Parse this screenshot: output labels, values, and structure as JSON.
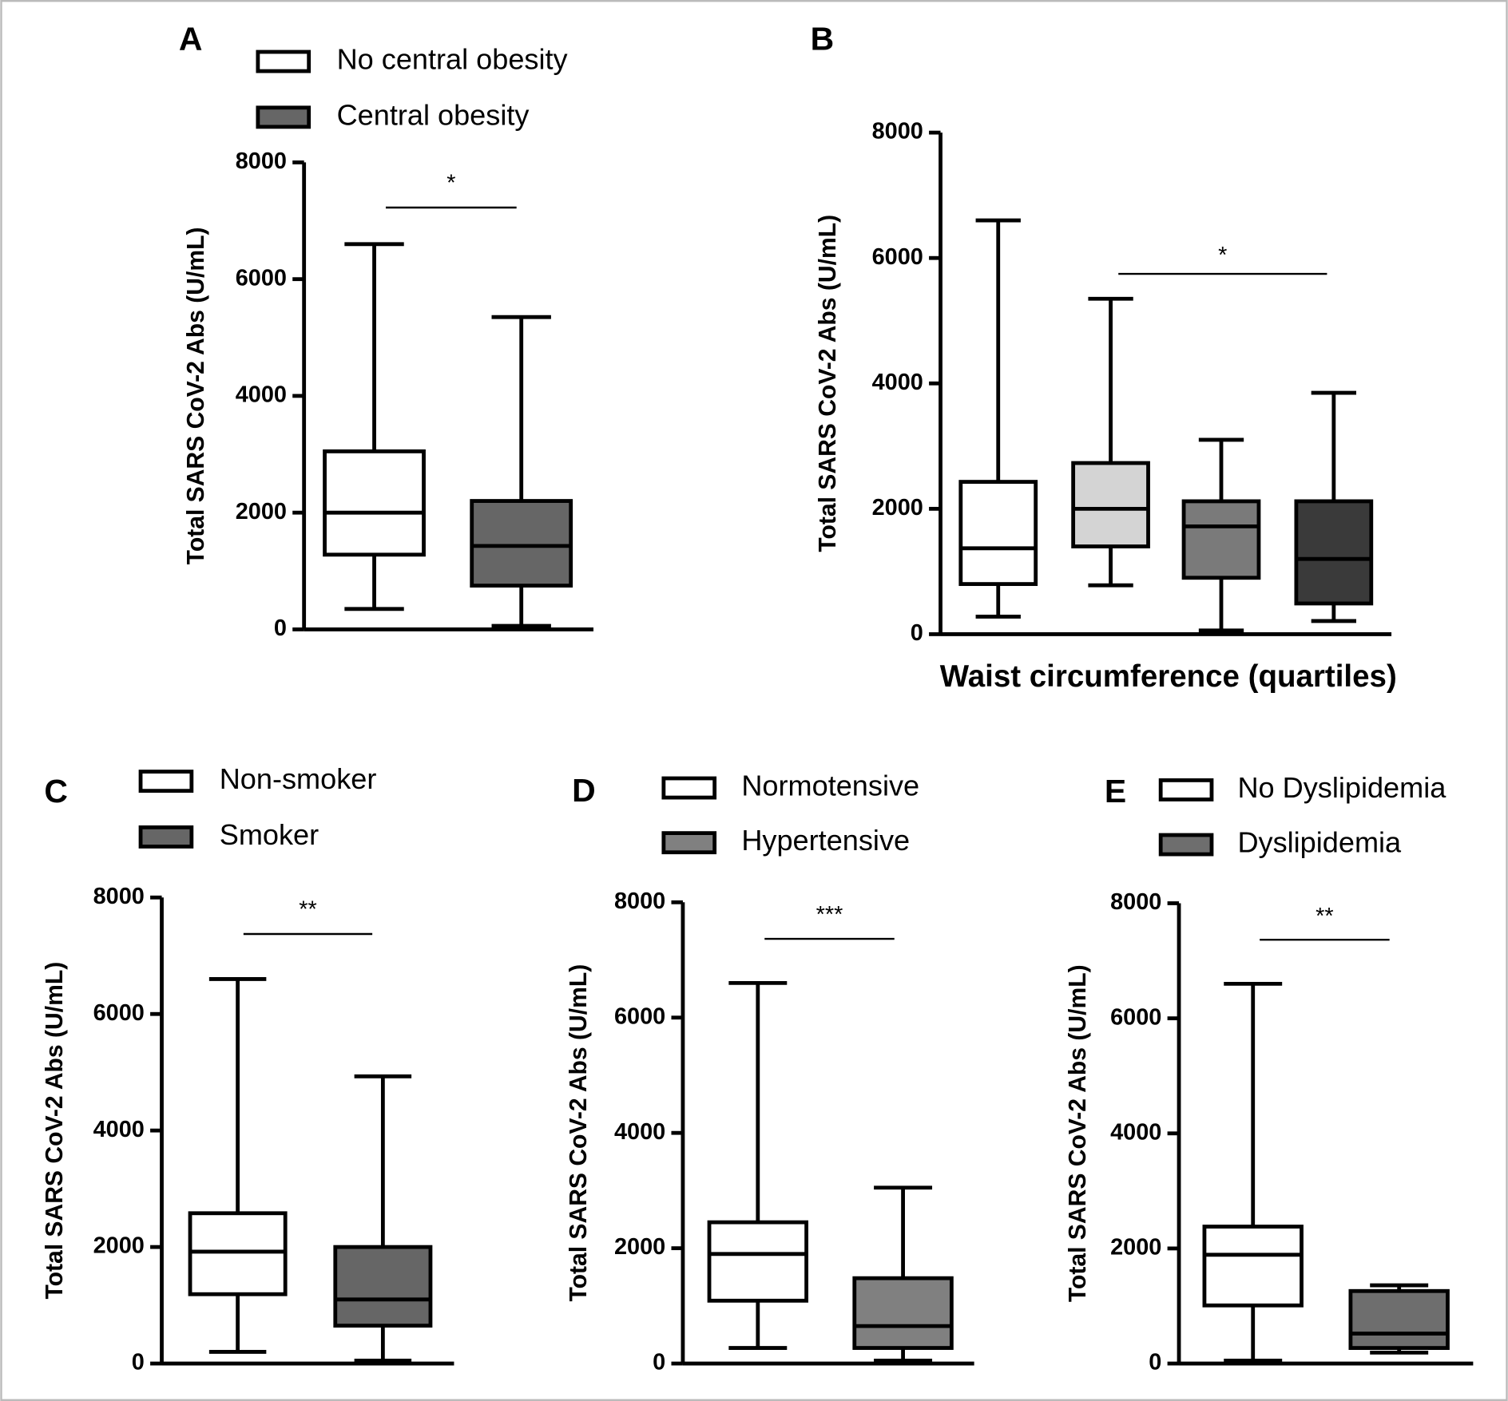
{
  "chart_data": [
    {
      "type": "box",
      "label": "A",
      "y_label": "Total SARS CoV-2 Abs (U/mL)",
      "ylim": [
        0,
        8000
      ],
      "yticks": [
        0,
        2000,
        4000,
        6000,
        8000
      ],
      "series": [
        {
          "name": "No central obesity",
          "color": "#ffffff",
          "whisker_low": 350,
          "q1": 1280,
          "median": 2000,
          "q3": 3050,
          "whisker_high": 6600
        },
        {
          "name": "Central obesity",
          "color": "#666666",
          "whisker_low": 60,
          "q1": 750,
          "median": 1430,
          "q3": 2200,
          "whisker_high": 5350
        }
      ],
      "significance": {
        "label": "*",
        "between": [
          0,
          1
        ]
      }
    },
    {
      "type": "box",
      "label": "B",
      "y_label": "Total SARS CoV-2 Abs (U/mL)",
      "x_label": "Waist circumference (quartiles)",
      "ylim": [
        0,
        8000
      ],
      "yticks": [
        0,
        2000,
        4000,
        6000,
        8000
      ],
      "series": [
        {
          "color": "#ffffff",
          "whisker_low": 280,
          "q1": 800,
          "median": 1370,
          "q3": 2430,
          "whisker_high": 6600
        },
        {
          "color": "#d4d4d4",
          "whisker_low": 780,
          "q1": 1400,
          "median": 2000,
          "q3": 2730,
          "whisker_high": 5350
        },
        {
          "color": "#7a7a7a",
          "whisker_low": 60,
          "q1": 900,
          "median": 1720,
          "q3": 2120,
          "whisker_high": 3100
        },
        {
          "color": "#3a3a3a",
          "whisker_low": 210,
          "q1": 490,
          "median": 1200,
          "q3": 2120,
          "whisker_high": 3850
        }
      ],
      "significance": {
        "label": "*",
        "between": [
          1,
          3
        ]
      }
    },
    {
      "type": "box",
      "label": "C",
      "y_label": "Total SARS CoV-2 Abs (U/mL)",
      "ylim": [
        0,
        8000
      ],
      "yticks": [
        0,
        2000,
        4000,
        6000,
        8000
      ],
      "series": [
        {
          "name": "Non-smoker",
          "color": "#ffffff",
          "whisker_low": 200,
          "q1": 1190,
          "median": 1920,
          "q3": 2580,
          "whisker_high": 6600
        },
        {
          "name": "Smoker",
          "color": "#666666",
          "whisker_low": 50,
          "q1": 650,
          "median": 1100,
          "q3": 2000,
          "whisker_high": 4930
        }
      ],
      "significance": {
        "label": "**",
        "between": [
          0,
          1
        ]
      }
    },
    {
      "type": "box",
      "label": "D",
      "y_label": "Total SARS CoV-2 Abs (U/mL)",
      "ylim": [
        0,
        8000
      ],
      "yticks": [
        0,
        2000,
        4000,
        6000,
        8000
      ],
      "series": [
        {
          "name": "Normotensive",
          "color": "#ffffff",
          "whisker_low": 270,
          "q1": 1090,
          "median": 1900,
          "q3": 2450,
          "whisker_high": 6600
        },
        {
          "name": "Hypertensive",
          "color": "#808080",
          "whisker_low": 50,
          "q1": 270,
          "median": 650,
          "q3": 1480,
          "whisker_high": 3050
        }
      ],
      "significance": {
        "label": "***",
        "between": [
          0,
          1
        ]
      }
    },
    {
      "type": "box",
      "label": "E",
      "y_label": "Total SARS CoV-2 Abs (U/mL)",
      "ylim": [
        0,
        8000
      ],
      "yticks": [
        0,
        2000,
        4000,
        6000,
        8000
      ],
      "series": [
        {
          "name": "No Dyslipidemia",
          "color": "#ffffff",
          "whisker_low": 50,
          "q1": 1010,
          "median": 1890,
          "q3": 2380,
          "whisker_high": 6600
        },
        {
          "name": "Dyslipidemia",
          "color": "#6e6e6e",
          "whisker_low": 190,
          "q1": 270,
          "median": 520,
          "q3": 1260,
          "whisker_high": 1360
        }
      ],
      "significance": {
        "label": "**",
        "between": [
          0,
          1
        ]
      }
    }
  ]
}
